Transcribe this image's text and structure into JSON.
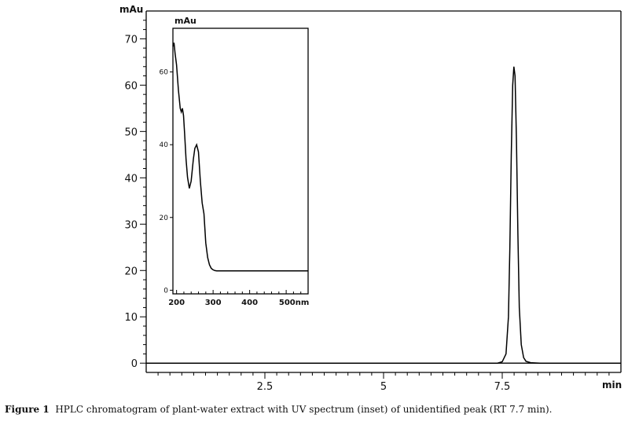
{
  "caption": {
    "label": "Figure 1",
    "text": "HPLC chromatogram of plant-water extract with UV spectrum (inset) of unidentified peak (RT 7.7 min)."
  },
  "chart_data": [
    {
      "id": "chromatogram",
      "type": "line",
      "xlabel": "min",
      "ylabel": "mAu",
      "xlim": [
        0,
        10
      ],
      "ylim": [
        -2,
        76
      ],
      "x_ticks": [
        2.5,
        5,
        7.5
      ],
      "x_tick_labels": [
        "2.5",
        "5",
        "7.5"
      ],
      "y_ticks": [
        0,
        10,
        20,
        30,
        40,
        50,
        60,
        70
      ],
      "y_tick_labels": [
        "0",
        "10",
        "20",
        "30",
        "40",
        "50",
        "60",
        "70"
      ],
      "grid": false,
      "series": [
        {
          "color": "#000000",
          "x": [
            0,
            7.4,
            7.5,
            7.58,
            7.63,
            7.66,
            7.69,
            7.72,
            7.745,
            7.77,
            7.8,
            7.83,
            7.86,
            7.9,
            7.95,
            8.0,
            8.1,
            8.3,
            10
          ],
          "y": [
            0,
            0,
            0.3,
            2,
            10,
            25,
            45,
            60,
            64,
            62,
            48,
            28,
            12,
            4,
            1.2,
            0.4,
            0.1,
            0,
            0
          ]
        }
      ]
    },
    {
      "id": "uv-spectrum-inset",
      "type": "line",
      "xlabel": "nm",
      "ylabel": "mAu",
      "xlim": [
        190,
        560
      ],
      "ylim": [
        -1,
        72
      ],
      "x_ticks": [
        200,
        300,
        400,
        500
      ],
      "x_tick_labels": [
        "200",
        "300",
        "400",
        "500nm"
      ],
      "y_ticks": [
        0,
        20,
        40,
        60
      ],
      "y_tick_labels": [
        "0",
        "20",
        "40",
        "60"
      ],
      "grid": false,
      "series": [
        {
          "color": "#000000",
          "x": [
            190,
            193,
            196,
            200,
            205,
            210,
            213,
            216,
            219,
            222,
            226,
            230,
            235,
            240,
            243,
            246,
            250,
            255,
            260,
            265,
            270,
            275,
            280,
            285,
            290,
            295,
            300,
            305,
            310,
            320,
            340,
            360,
            400,
            450,
            500,
            560
          ],
          "y": [
            67,
            68,
            65,
            62,
            55,
            50,
            49,
            50,
            48,
            43,
            36,
            31,
            28,
            30,
            33,
            36,
            39,
            40,
            38,
            30,
            24,
            21,
            13,
            9,
            7,
            6,
            5.6,
            5.4,
            5.3,
            5.3,
            5.3,
            5.3,
            5.3,
            5.3,
            5.3,
            5.3
          ]
        }
      ]
    }
  ]
}
